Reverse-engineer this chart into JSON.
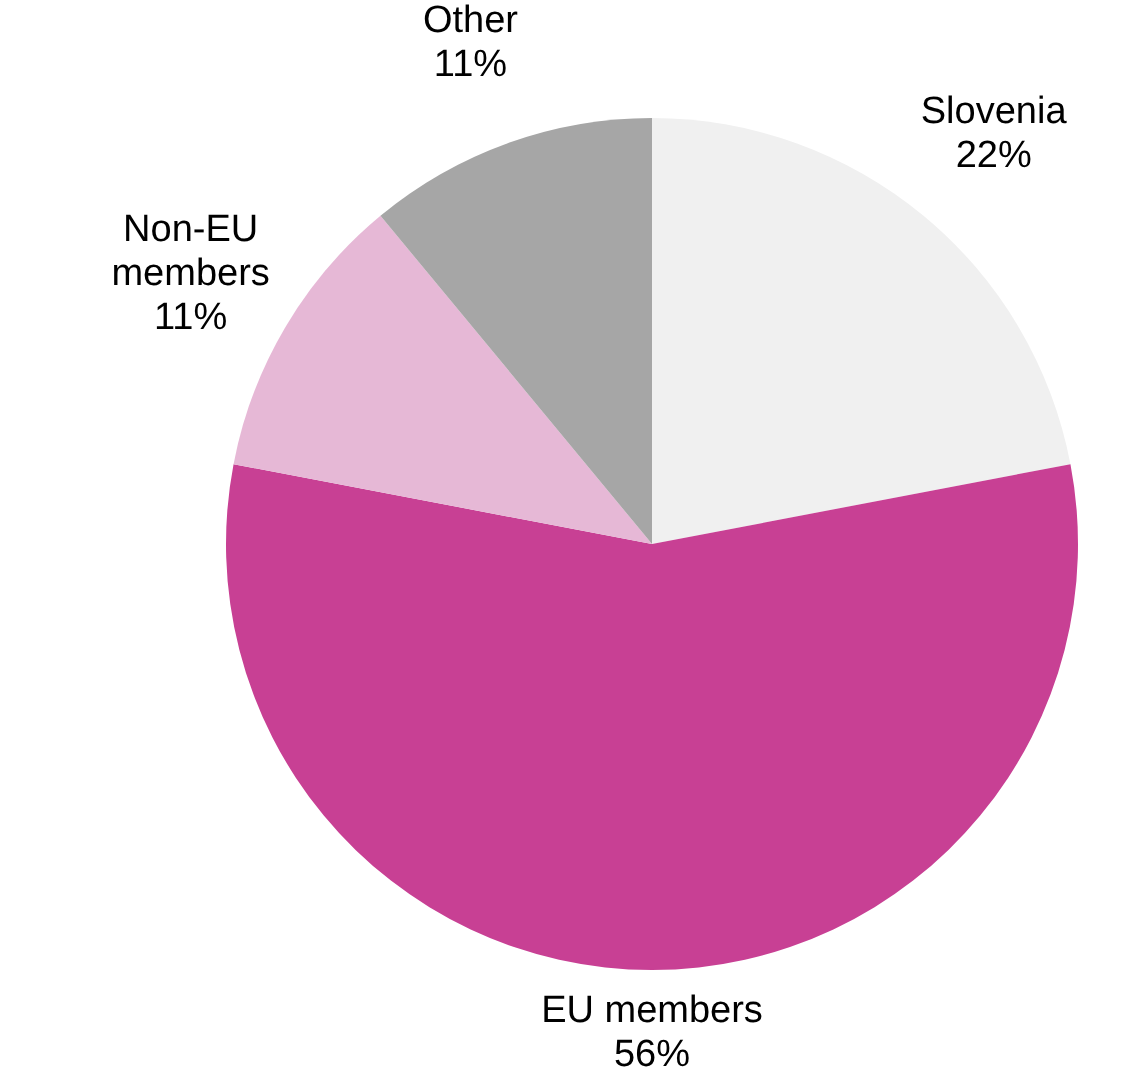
{
  "chart_data": {
    "type": "pie",
    "categories": [
      "Slovenia",
      "EU members",
      "Non-EU members",
      "Other"
    ],
    "values": [
      22,
      56,
      11,
      11
    ],
    "value_labels": [
      "22%",
      "56%",
      "11%",
      "11%"
    ],
    "colors": [
      "#f0f0f0",
      "#c84094",
      "#e6b8d6",
      "#a6a6a6"
    ]
  }
}
